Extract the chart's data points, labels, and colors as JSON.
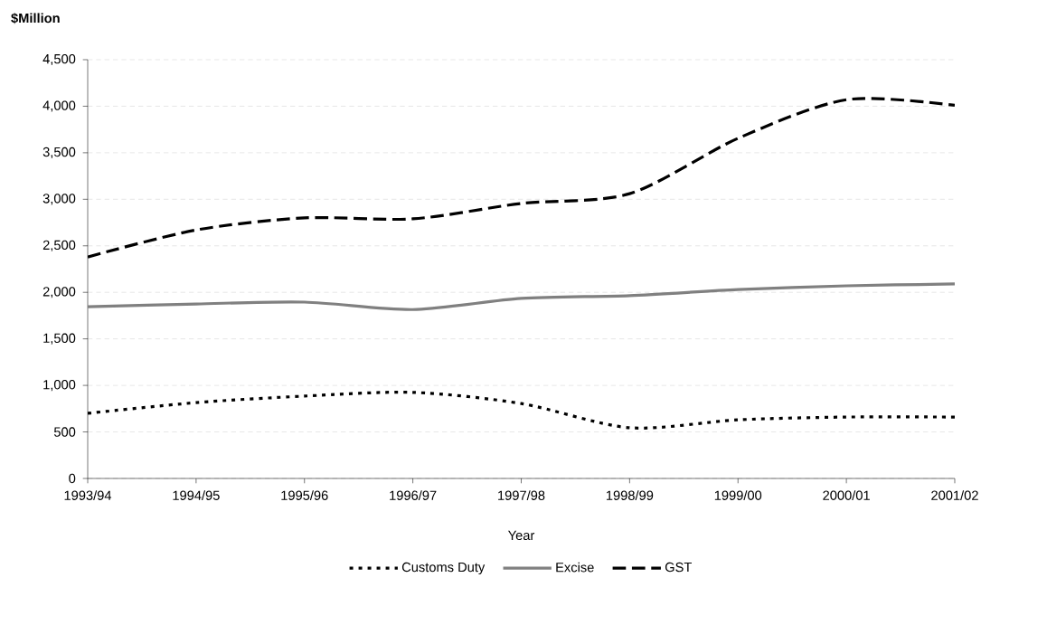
{
  "chart_data": {
    "type": "line",
    "xlabel": "Year",
    "ylabel": "$Million",
    "categories": [
      "1993/94",
      "1994/95",
      "1995/96",
      "1996/97",
      "1997/98",
      "1998/99",
      "1999/00",
      "2000/01",
      "2001/02"
    ],
    "series": [
      {
        "name": "Customs Duty",
        "color": "#000000",
        "line_style": "dotted",
        "values": [
          700,
          815,
          885,
          925,
          805,
          545,
          630,
          660,
          660
        ]
      },
      {
        "name": "Excise",
        "color": "#808080",
        "line_style": "solid",
        "values": [
          1845,
          1875,
          1895,
          1815,
          1935,
          1965,
          2030,
          2070,
          2090
        ]
      },
      {
        "name": "GST",
        "color": "#000000",
        "line_style": "dashed",
        "values": [
          2380,
          2670,
          2800,
          2790,
          2955,
          3060,
          3655,
          4070,
          4010
        ]
      }
    ],
    "ylim": [
      0,
      4500
    ],
    "yticks": [
      0,
      500,
      {
        "value": 1000,
        "label": "1,000"
      },
      {
        "value": 1500,
        "label": "1,500"
      },
      {
        "value": 2000,
        "label": "2,000"
      },
      {
        "value": 2500,
        "label": "2,500"
      },
      {
        "value": 3000,
        "label": "3,000"
      },
      {
        "value": 3500,
        "label": "3,500"
      },
      {
        "value": 4000,
        "label": "4,000"
      },
      {
        "value": 4500,
        "label": "4,500"
      }
    ],
    "grid": "y",
    "legend": "bottom",
    "marker": "none"
  }
}
